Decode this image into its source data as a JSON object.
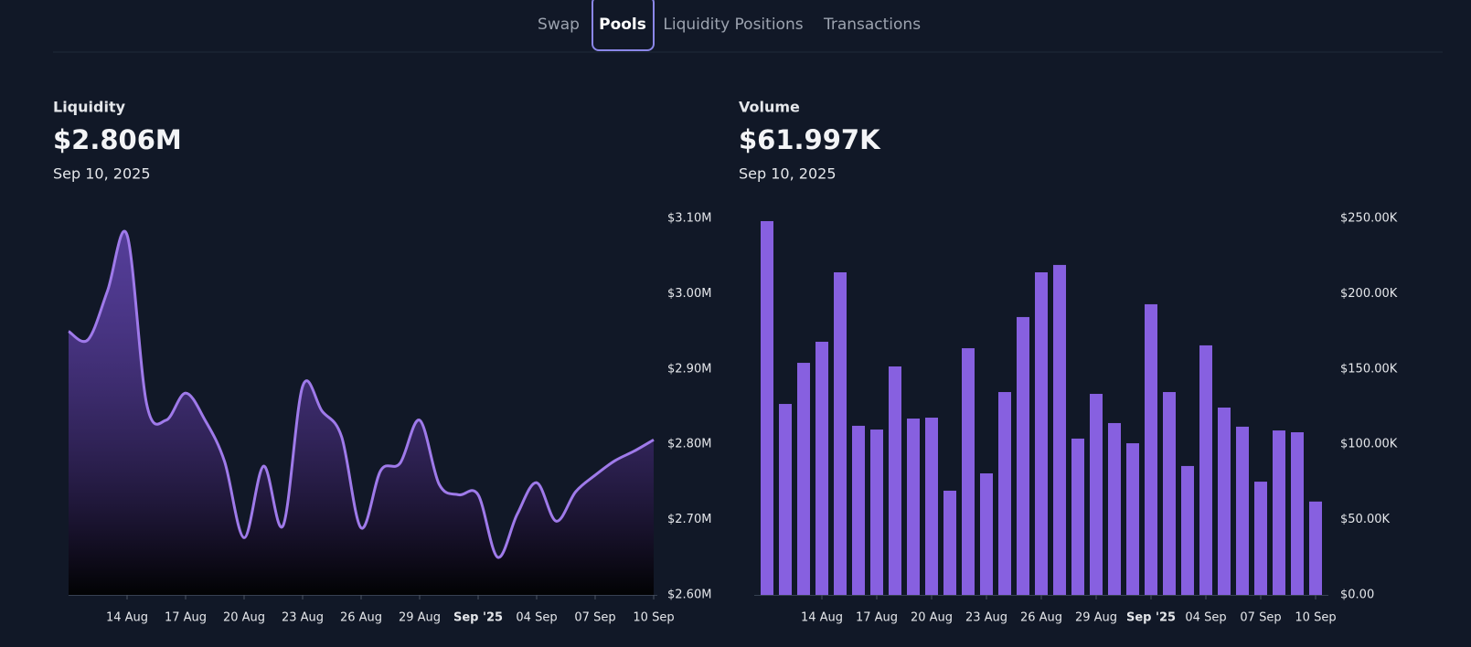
{
  "nav": {
    "tabs": [
      "Swap",
      "Pools",
      "Liquidity Positions",
      "Transactions"
    ],
    "active": 1
  },
  "chart_data": [
    {
      "type": "line",
      "title": "Liquidity",
      "value_text": "$2.806M",
      "date": "Sep 10, 2025",
      "color": "#9f7aea",
      "categories": [
        null,
        null,
        null,
        "14 Aug",
        null,
        null,
        "17 Aug",
        null,
        null,
        "20 Aug",
        null,
        null,
        "23 Aug",
        null,
        null,
        "26 Aug",
        null,
        null,
        "29 Aug",
        null,
        null,
        "Sep '25",
        null,
        null,
        "04 Sep",
        null,
        null,
        "07 Sep",
        null,
        null,
        "10 Sep"
      ],
      "values": [
        2950000,
        2939000,
        3004000,
        3078000,
        2854000,
        2832000,
        2868000,
        2832000,
        2777000,
        2676000,
        2771000,
        2692000,
        2877000,
        2844000,
        2810000,
        2689000,
        2765000,
        2775000,
        2832000,
        2747000,
        2733000,
        2733000,
        2650000,
        2707000,
        2749000,
        2698000,
        2737000,
        2759000,
        2778000,
        2791000,
        2806000
      ],
      "ylim": [
        2600000,
        3100000
      ],
      "yticks": [
        {
          "value": 2600000,
          "label": "$2.60M"
        },
        {
          "value": 2700000,
          "label": "$2.70M"
        },
        {
          "value": 2800000,
          "label": "$2.80M"
        },
        {
          "value": 2900000,
          "label": "$2.90M"
        },
        {
          "value": 3000000,
          "label": "$3.00M"
        },
        {
          "value": 3100000,
          "label": "$3.10M"
        }
      ]
    },
    {
      "type": "bar",
      "title": "Volume",
      "value_text": "$61.997K",
      "date": "Sep 10, 2025",
      "color": "#8760e0",
      "categories": [
        null,
        null,
        null,
        "14 Aug",
        null,
        null,
        "17 Aug",
        null,
        null,
        "20 Aug",
        null,
        null,
        "23 Aug",
        null,
        null,
        "26 Aug",
        null,
        null,
        "29 Aug",
        null,
        null,
        "Sep '25",
        null,
        null,
        "04 Sep",
        null,
        null,
        "07 Sep",
        null,
        null,
        "10 Sep"
      ],
      "values": [
        248200,
        126800,
        154100,
        168100,
        214200,
        112300,
        109800,
        151700,
        117100,
        117700,
        69200,
        163800,
        80700,
        134700,
        184500,
        214200,
        219100,
        103800,
        133500,
        114100,
        100700,
        193000,
        134700,
        85600,
        165700,
        124400,
        111700,
        75200,
        109200,
        108000,
        61997
      ],
      "ylim": [
        0,
        250000
      ],
      "yticks": [
        {
          "value": 0,
          "label": "$0.00"
        },
        {
          "value": 50000,
          "label": "$50.00K"
        },
        {
          "value": 100000,
          "label": "$100.00K"
        },
        {
          "value": 150000,
          "label": "$150.00K"
        },
        {
          "value": 200000,
          "label": "$200.00K"
        },
        {
          "value": 250000,
          "label": "$250.00K"
        }
      ]
    }
  ]
}
